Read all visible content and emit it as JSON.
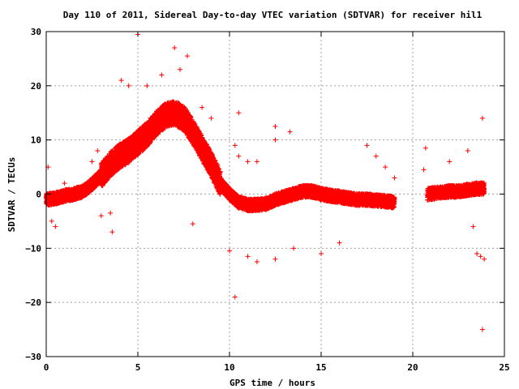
{
  "chart_data": {
    "type": "scatter",
    "title": "Day 110 of 2011, Sidereal Day-to-day VTEC variation (SDTVAR) for receiver hil1",
    "xlabel": "GPS time / hours",
    "ylabel": "SDTVAR / TECUs",
    "xlim": [
      0,
      25
    ],
    "ylim": [
      -30,
      30
    ],
    "xticks": [
      "0",
      "5",
      "10",
      "15",
      "20",
      "25"
    ],
    "yticks": [
      "30",
      "20",
      "10",
      "0",
      "−10",
      "−20",
      "−30"
    ],
    "grid": true,
    "marker": "plus",
    "marker_color": "#ff0000",
    "series": [
      {
        "values_trend": [
          [
            0.0,
            -1.0
          ],
          [
            0.5,
            -0.8
          ],
          [
            1.0,
            -0.3
          ],
          [
            1.5,
            0.0
          ],
          [
            2.0,
            0.5
          ],
          [
            2.5,
            1.8
          ],
          [
            3.0,
            3.5
          ],
          [
            3.5,
            5.5
          ],
          [
            4.0,
            7.0
          ],
          [
            4.5,
            8.0
          ],
          [
            5.0,
            9.5
          ],
          [
            5.5,
            11.0
          ],
          [
            6.0,
            13.0
          ],
          [
            6.5,
            14.5
          ],
          [
            7.0,
            15.0
          ],
          [
            7.5,
            14.0
          ],
          [
            8.0,
            11.5
          ],
          [
            8.5,
            8.5
          ],
          [
            9.0,
            5.5
          ],
          [
            9.5,
            2.0
          ],
          [
            10.0,
            0.0
          ],
          [
            10.5,
            -1.5
          ],
          [
            11.0,
            -2.0
          ],
          [
            11.5,
            -2.0
          ],
          [
            12.0,
            -1.8
          ],
          [
            12.5,
            -1.0
          ],
          [
            13.0,
            -0.5
          ],
          [
            13.5,
            0.0
          ],
          [
            14.0,
            0.5
          ],
          [
            14.5,
            0.5
          ],
          [
            15.0,
            0.0
          ],
          [
            15.5,
            -0.3
          ],
          [
            16.0,
            -0.5
          ],
          [
            16.5,
            -0.8
          ],
          [
            17.0,
            -1.0
          ],
          [
            17.5,
            -1.0
          ],
          [
            18.0,
            -1.2
          ],
          [
            18.5,
            -1.3
          ],
          [
            19.0,
            -1.5
          ],
          [
            20.8,
            0.0
          ],
          [
            21.5,
            0.3
          ],
          [
            22.0,
            0.5
          ],
          [
            22.5,
            0.5
          ],
          [
            23.0,
            0.8
          ],
          [
            23.5,
            1.0
          ],
          [
            23.9,
            1.0
          ]
        ],
        "outliers": [
          [
            5.0,
            29.5
          ],
          [
            7.0,
            27.0
          ],
          [
            7.7,
            25.5
          ],
          [
            7.3,
            23.0
          ],
          [
            6.3,
            22.0
          ],
          [
            4.1,
            21.0
          ],
          [
            4.5,
            20.0
          ],
          [
            5.5,
            20.0
          ],
          [
            8.5,
            16.0
          ],
          [
            9.0,
            14.0
          ],
          [
            12.5,
            12.5
          ],
          [
            13.3,
            11.5
          ],
          [
            10.5,
            15.0
          ],
          [
            10.3,
            9.0
          ],
          [
            10.5,
            7.0
          ],
          [
            11.0,
            6.0
          ],
          [
            11.5,
            6.0
          ],
          [
            12.5,
            10.0
          ],
          [
            17.5,
            9.0
          ],
          [
            18.0,
            7.0
          ],
          [
            18.5,
            5.0
          ],
          [
            19.0,
            3.0
          ],
          [
            3.0,
            -4.0
          ],
          [
            3.5,
            -3.5
          ],
          [
            3.6,
            -7.0
          ],
          [
            8.0,
            -5.5
          ],
          [
            10.0,
            -10.5
          ],
          [
            10.3,
            -19.0
          ],
          [
            11.0,
            -11.5
          ],
          [
            11.5,
            -12.5
          ],
          [
            12.5,
            -12.0
          ],
          [
            13.5,
            -10.0
          ],
          [
            15.0,
            -11.0
          ],
          [
            16.0,
            -9.0
          ],
          [
            20.7,
            8.5
          ],
          [
            20.6,
            4.5
          ],
          [
            22.0,
            6.0
          ],
          [
            23.0,
            8.0
          ],
          [
            23.8,
            14.0
          ],
          [
            23.7,
            -11.5
          ],
          [
            23.9,
            -12.0
          ],
          [
            23.5,
            -11.0
          ],
          [
            23.8,
            -25.0
          ],
          [
            23.3,
            -6.0
          ],
          [
            0.1,
            5.0
          ],
          [
            0.3,
            -5.0
          ],
          [
            0.5,
            -6.0
          ],
          [
            1.0,
            2.0
          ],
          [
            2.5,
            6.0
          ],
          [
            2.8,
            8.0
          ]
        ]
      }
    ]
  }
}
